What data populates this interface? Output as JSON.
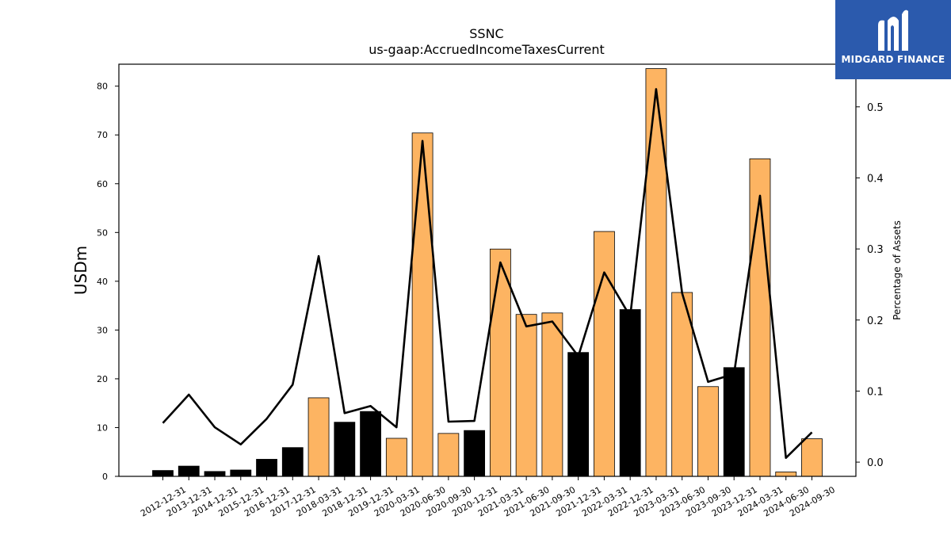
{
  "chart_data": {
    "type": "bar",
    "title": "SSNC",
    "subtitle": "us-gaap:AccruedIncomeTaxesCurrent",
    "ylabel": "USDm",
    "ylabel_right": "Percentage of Assets",
    "ylim": [
      0,
      84.5
    ],
    "ylim_right": [
      -0.02,
      0.56
    ],
    "yticks": [
      0,
      10,
      20,
      30,
      40,
      50,
      60,
      70,
      80
    ],
    "yticks_right": [
      0.0,
      0.1,
      0.2,
      0.3,
      0.4,
      0.5
    ],
    "colors": {
      "annual": "#000000",
      "quarterly": "#fdb462",
      "line": "#000000"
    },
    "categories": [
      "2012-12-31",
      "2013-12-31",
      "2014-12-31",
      "2015-12-31",
      "2016-12-31",
      "2017-12-31",
      "2018-03-31",
      "2018-12-31",
      "2019-12-31",
      "2020-03-31",
      "2020-06-30",
      "2020-09-30",
      "2020-12-31",
      "2021-03-31",
      "2021-06-30",
      "2021-09-30",
      "2021-12-31",
      "2022-03-31",
      "2022-12-31",
      "2023-03-31",
      "2023-06-30",
      "2023-09-30",
      "2023-12-31",
      "2024-03-31",
      "2024-06-30",
      "2024-09-30"
    ],
    "period_type": [
      "annual",
      "annual",
      "annual",
      "annual",
      "annual",
      "annual",
      "quarterly",
      "annual",
      "annual",
      "quarterly",
      "quarterly",
      "quarterly",
      "annual",
      "quarterly",
      "quarterly",
      "quarterly",
      "annual",
      "quarterly",
      "annual",
      "quarterly",
      "quarterly",
      "quarterly",
      "annual",
      "quarterly",
      "quarterly",
      "quarterly"
    ],
    "series": [
      {
        "name": "",
        "axis": "left",
        "kind": "bar",
        "values": [
          1.2,
          2.1,
          1.0,
          1.3,
          3.5,
          5.9,
          16.1,
          11.1,
          13.3,
          7.8,
          70.4,
          8.8,
          9.4,
          46.6,
          33.2,
          33.5,
          25.4,
          50.2,
          34.2,
          83.6,
          37.7,
          18.4,
          22.3,
          65.1,
          0.9,
          7.7
        ]
      },
      {
        "name": "",
        "axis": "right",
        "kind": "line",
        "values": [
          0.055,
          0.095,
          0.049,
          0.025,
          0.061,
          0.109,
          0.29,
          0.069,
          0.079,
          0.049,
          0.452,
          0.057,
          0.058,
          0.281,
          0.191,
          0.198,
          0.149,
          0.267,
          0.205,
          0.525,
          0.238,
          0.113,
          0.124,
          0.375,
          0.006,
          0.042
        ]
      }
    ]
  },
  "logo": {
    "text": "MIDGARD FINANCE",
    "icon": "midgard-logo-icon"
  }
}
